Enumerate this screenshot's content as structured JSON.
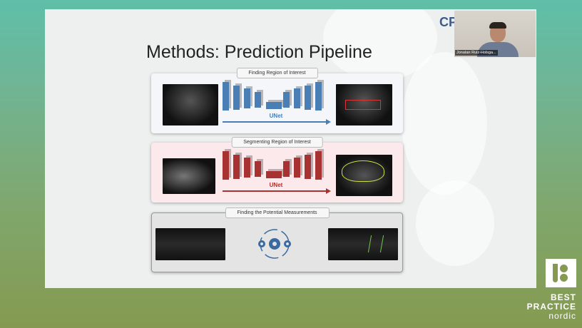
{
  "slide": {
    "title": "Methods: Prediction Pipeline",
    "corner_logo_text": "CP",
    "panels": [
      {
        "label": "Finding Region of Interest",
        "network": "UNet",
        "color": "#4a7fb5"
      },
      {
        "label": "Segmenting Region of Interest",
        "network": "UNet",
        "color": "#a83232"
      },
      {
        "label": "Finding the Potential Measurements",
        "icon": "gears-icon",
        "color": "#3b6aa0"
      }
    ]
  },
  "webcam": {
    "participant_name": "Jonatan Ruiz-Holsga..."
  },
  "brand": {
    "line1": "BEST",
    "line2": "PRACTICE",
    "line3": "nordic",
    "accent": "#859a50"
  }
}
